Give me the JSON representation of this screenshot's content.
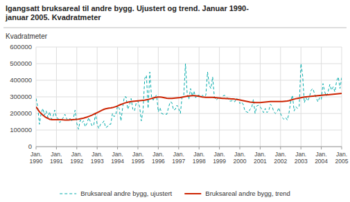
{
  "chart_data": {
    "type": "line",
    "title": "Igangsatt bruksareal til andre bygg. Ujustert og trend. Januar 1990-\njanuar 2005. Kvadratmeter",
    "y_label": "Kvadratmeter",
    "ylim": [
      0,
      600000
    ],
    "yticks": [
      0,
      100000,
      200000,
      300000,
      400000,
      500000,
      600000
    ],
    "grid": true,
    "legend": "bottom",
    "categories": [
      "Jan.\n1990",
      null,
      null,
      null,
      null,
      null,
      null,
      null,
      null,
      null,
      null,
      null,
      "Jan.\n1991",
      null,
      null,
      null,
      null,
      null,
      null,
      null,
      null,
      null,
      null,
      null,
      "Jan.\n1992",
      null,
      null,
      null,
      null,
      null,
      null,
      null,
      null,
      null,
      null,
      null,
      "Jan.\n1993",
      null,
      null,
      null,
      null,
      null,
      null,
      null,
      null,
      null,
      null,
      null,
      "Jan.\n1994",
      null,
      null,
      null,
      null,
      null,
      null,
      null,
      null,
      null,
      null,
      null,
      "Jan.\n1995",
      null,
      null,
      null,
      null,
      null,
      null,
      null,
      null,
      null,
      null,
      null,
      "Jan.\n1996",
      null,
      null,
      null,
      null,
      null,
      null,
      null,
      null,
      null,
      null,
      null,
      "Jan.\n1997",
      null,
      null,
      null,
      null,
      null,
      null,
      null,
      null,
      null,
      null,
      null,
      "Jan.\n1998",
      null,
      null,
      null,
      null,
      null,
      null,
      null,
      null,
      null,
      null,
      null,
      "Jan.\n1999",
      null,
      null,
      null,
      null,
      null,
      null,
      null,
      null,
      null,
      null,
      null,
      "Jan.\n2000",
      null,
      null,
      null,
      null,
      null,
      null,
      null,
      null,
      null,
      null,
      null,
      "Jan.\n2001",
      null,
      null,
      null,
      null,
      null,
      null,
      null,
      null,
      null,
      null,
      null,
      "Jan.\n2002",
      null,
      null,
      null,
      null,
      null,
      null,
      null,
      null,
      null,
      null,
      null,
      "Jan.\n2003",
      null,
      null,
      null,
      null,
      null,
      null,
      null,
      null,
      null,
      null,
      null,
      "Jan.\n2004",
      null,
      null,
      null,
      null,
      null,
      null,
      null,
      null,
      null,
      null,
      null,
      "Jan.\n2005"
    ],
    "series": [
      {
        "name": "Bruksareal andre bygg, ujustert",
        "color": "#00AAAA",
        "line_style": "dashed",
        "values": [
          290000,
          240000,
          135000,
          200000,
          230000,
          190000,
          215000,
          175000,
          210000,
          165000,
          180000,
          220000,
          175000,
          170000,
          145000,
          160000,
          175000,
          195000,
          170000,
          155000,
          170000,
          155000,
          170000,
          220000,
          140000,
          105000,
          160000,
          145000,
          155000,
          120000,
          140000,
          175000,
          150000,
          125000,
          130000,
          200000,
          135000,
          110000,
          135000,
          140000,
          155000,
          115000,
          120000,
          135000,
          135000,
          200000,
          180000,
          195000,
          245000,
          230000,
          155000,
          235000,
          300000,
          300000,
          225000,
          250000,
          290000,
          225000,
          215000,
          265000,
          275000,
          240000,
          155000,
          215000,
          410000,
          430000,
          230000,
          450000,
          300000,
          280000,
          300000,
          310000,
          210000,
          235000,
          200000,
          195000,
          195000,
          195000,
          235000,
          270000,
          265000,
          220000,
          225000,
          250000,
          230000,
          200000,
          300000,
          310000,
          500000,
          320000,
          285000,
          350000,
          305000,
          335000,
          295000,
          310000,
          310000,
          300000,
          310000,
          300000,
          310000,
          450000,
          370000,
          350000,
          420000,
          300000,
          280000,
          290000,
          300000,
          290000,
          305000,
          310000,
          300000,
          290000,
          275000,
          275000,
          280000,
          270000,
          290000,
          285000,
          260000,
          270000,
          255000,
          215000,
          210000,
          205000,
          225000,
          235000,
          285000,
          200000,
          245000,
          250000,
          240000,
          225000,
          205000,
          230000,
          205000,
          215000,
          255000,
          245000,
          210000,
          200000,
          210000,
          235000,
          200000,
          175000,
          165000,
          175000,
          160000,
          205000,
          275000,
          310000,
          215000,
          240000,
          230000,
          245000,
          500000,
          430000,
          265000,
          295000,
          275000,
          300000,
          340000,
          350000,
          320000,
          295000,
          270000,
          295000,
          285000,
          380000,
          330000,
          305000,
          330000,
          375000,
          340000,
          360000,
          330000,
          395000,
          420000,
          350000,
          415000
        ]
      },
      {
        "name": "Bruksareal andre bygg, trend",
        "color": "#CC2200",
        "line_style": "solid",
        "values": [
          240000,
          225000,
          210000,
          200000,
          190000,
          182000,
          175000,
          170000,
          165000,
          163000,
          162000,
          162000,
          163000,
          163000,
          163000,
          162000,
          161000,
          160000,
          160000,
          160000,
          161000,
          162000,
          163000,
          164000,
          165000,
          166000,
          168000,
          170000,
          172000,
          175000,
          178000,
          182000,
          186000,
          190000,
          195000,
          200000,
          205000,
          210000,
          215000,
          220000,
          225000,
          228000,
          230000,
          232000,
          233000,
          235000,
          238000,
          241000,
          245000,
          250000,
          254000,
          258000,
          262000,
          265000,
          268000,
          270000,
          272000,
          273000,
          274000,
          275000,
          276000,
          277000,
          278000,
          279000,
          280000,
          282000,
          284000,
          287000,
          290000,
          293000,
          296000,
          298000,
          299000,
          299000,
          298000,
          296000,
          294000,
          292000,
          291000,
          291000,
          291000,
          292000,
          293000,
          294000,
          295000,
          296000,
          298000,
          300000,
          302000,
          304000,
          305000,
          306000,
          307000,
          307000,
          306000,
          305000,
          303000,
          301000,
          299000,
          298000,
          297000,
          297000,
          297000,
          297000,
          297000,
          296000,
          295000,
          294000,
          293000,
          292000,
          291000,
          291000,
          290000,
          290000,
          289000,
          288000,
          287000,
          286000,
          284000,
          283000,
          281000,
          279000,
          277000,
          275000,
          273000,
          271000,
          269000,
          268000,
          267000,
          266000,
          266000,
          266000,
          266000,
          267000,
          268000,
          269000,
          270000,
          271000,
          272000,
          272000,
          272000,
          272000,
          272000,
          272000,
          272000,
          272000,
          273000,
          274000,
          275000,
          277000,
          280000,
          283000,
          286000,
          289000,
          291000,
          293000,
          295000,
          297000,
          299000,
          300000,
          301000,
          302000,
          303000,
          304000,
          305000,
          306000,
          307000,
          308000,
          309000,
          310000,
          311000,
          312000,
          313000,
          314000,
          315000,
          316000,
          317000,
          318000,
          319000,
          320000,
          321000
        ]
      }
    ]
  }
}
